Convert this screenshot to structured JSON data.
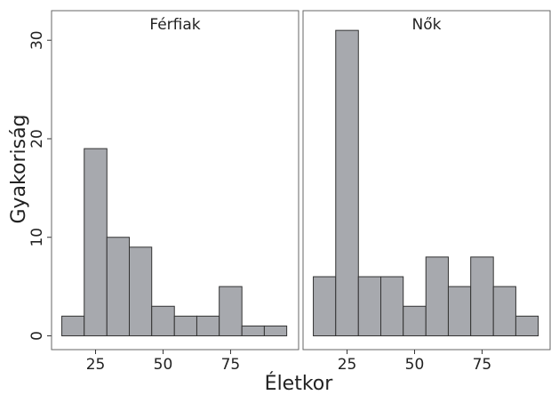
{
  "chart_data": {
    "type": "histogram",
    "xlabel": "Életkor",
    "ylabel": "Gyakoriság",
    "bins": [
      12.5,
      20.8,
      29.2,
      37.5,
      45.8,
      54.2,
      62.5,
      70.8,
      79.2,
      87.5,
      95.8
    ],
    "color": "#a7a9ae",
    "xlim": [
      8.7,
      100.2
    ],
    "xticks": [
      25,
      50,
      75
    ],
    "ylim": [
      -1.4,
      33
    ],
    "yticks": [
      0,
      10,
      20,
      30
    ],
    "series": [
      {
        "name": "Férfiak",
        "values": [
          2,
          19,
          10,
          9,
          3,
          2,
          2,
          5,
          1,
          1
        ]
      },
      {
        "name": "Nők",
        "values": [
          6,
          31,
          6,
          6,
          3,
          8,
          5,
          8,
          5,
          2
        ]
      }
    ]
  }
}
